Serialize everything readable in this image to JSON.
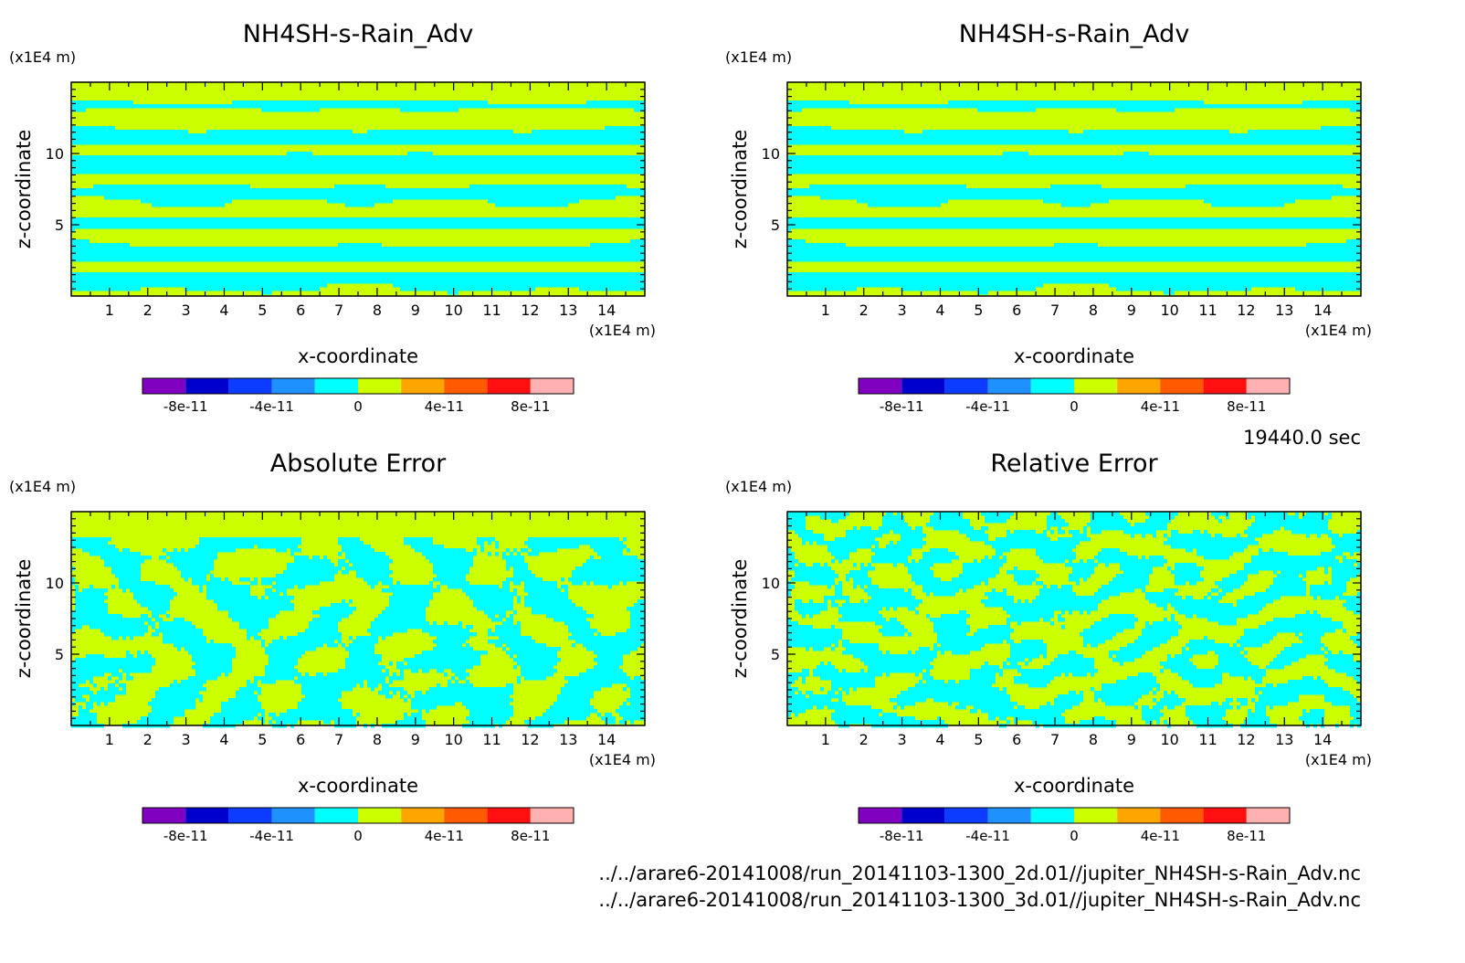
{
  "chart_data": [
    {
      "type": "heatmap",
      "title": "NH4SH-s-Rain_Adv",
      "xlabel": "x-coordinate",
      "ylabel": "z-coordinate",
      "x_unit": "(x1E4 m)",
      "y_unit": "(x1E4 m)",
      "xlim": [
        0,
        15
      ],
      "ylim": [
        0,
        15
      ],
      "x_ticks": [
        "1",
        "2",
        "3",
        "4",
        "5",
        "6",
        "7",
        "8",
        "9",
        "10",
        "11",
        "12",
        "13",
        "14"
      ],
      "y_ticks": [
        "5",
        "10"
      ],
      "field": "layered",
      "seed": 11,
      "mirror": true,
      "dominant_levels": [
        "0 to 2e-11 (yellow-green)",
        "-2e-11 to 0 (cyan)"
      ],
      "colorbar": {
        "levels": [
          -1e-10,
          -8e-11,
          -6e-11,
          -4e-11,
          -2e-11,
          0,
          2e-11,
          4e-11,
          6e-11,
          8e-11,
          1e-10
        ],
        "colors": [
          "#7f00bf",
          "#0000cd",
          "#0b3cff",
          "#1e90ff",
          "#00ffff",
          "#ccff00",
          "#ffa500",
          "#ff5a00",
          "#ff0f0f",
          "#ffb0b0"
        ],
        "labels": [
          "-8e-11",
          "-4e-11",
          "0",
          "4e-11",
          "8e-11"
        ]
      }
    },
    {
      "type": "heatmap",
      "title": "NH4SH-s-Rain_Adv",
      "xlabel": "x-coordinate",
      "ylabel": "z-coordinate",
      "x_unit": "(x1E4 m)",
      "y_unit": "(x1E4 m)",
      "xlim": [
        0,
        15
      ],
      "ylim": [
        0,
        15
      ],
      "x_ticks": [
        "1",
        "2",
        "3",
        "4",
        "5",
        "6",
        "7",
        "8",
        "9",
        "10",
        "11",
        "12",
        "13",
        "14"
      ],
      "y_ticks": [
        "5",
        "10"
      ],
      "field": "layered",
      "seed": 11,
      "mirror": true,
      "dominant_levels": [
        "0 to 2e-11 (yellow-green)",
        "-2e-11 to 0 (cyan)"
      ],
      "colorbar": {
        "levels": [
          -1e-10,
          -8e-11,
          -6e-11,
          -4e-11,
          -2e-11,
          0,
          2e-11,
          4e-11,
          6e-11,
          8e-11,
          1e-10
        ],
        "colors": [
          "#7f00bf",
          "#0000cd",
          "#0b3cff",
          "#1e90ff",
          "#00ffff",
          "#ccff00",
          "#ffa500",
          "#ff5a00",
          "#ff0f0f",
          "#ffb0b0"
        ],
        "labels": [
          "-8e-11",
          "-4e-11",
          "0",
          "4e-11",
          "8e-11"
        ]
      }
    },
    {
      "type": "heatmap",
      "title": "Absolute Error",
      "xlabel": "x-coordinate",
      "ylabel": "z-coordinate",
      "x_unit": "(x1E4 m)",
      "y_unit": "(x1E4 m)",
      "xlim": [
        0,
        15
      ],
      "ylim": [
        0,
        15
      ],
      "x_ticks": [
        "1",
        "2",
        "3",
        "4",
        "5",
        "6",
        "7",
        "8",
        "9",
        "10",
        "11",
        "12",
        "13",
        "14"
      ],
      "y_ticks": [
        "5",
        "10"
      ],
      "field": "noisy-top-flat",
      "seed": 37,
      "mirror": false,
      "dominant_levels": [
        "0 to 2e-11 (yellow-green)",
        "-2e-11 to 0 (cyan)"
      ],
      "colorbar": {
        "levels": [
          -1e-10,
          -8e-11,
          -6e-11,
          -4e-11,
          -2e-11,
          0,
          2e-11,
          4e-11,
          6e-11,
          8e-11,
          1e-10
        ],
        "colors": [
          "#7f00bf",
          "#0000cd",
          "#0b3cff",
          "#1e90ff",
          "#00ffff",
          "#ccff00",
          "#ffa500",
          "#ff5a00",
          "#ff0f0f",
          "#ffb0b0"
        ],
        "labels": [
          "-8e-11",
          "-4e-11",
          "0",
          "4e-11",
          "8e-11"
        ]
      }
    },
    {
      "type": "heatmap",
      "title": "Relative Error",
      "xlabel": "x-coordinate",
      "ylabel": "z-coordinate",
      "x_unit": "(x1E4 m)",
      "y_unit": "(x1E4 m)",
      "xlim": [
        0,
        15
      ],
      "ylim": [
        0,
        15
      ],
      "x_ticks": [
        "1",
        "2",
        "3",
        "4",
        "5",
        "6",
        "7",
        "8",
        "9",
        "10",
        "11",
        "12",
        "13",
        "14"
      ],
      "y_ticks": [
        "5",
        "10"
      ],
      "field": "noisy",
      "seed": 73,
      "mirror": false,
      "dominant_levels": [
        "0 to 2e-11 (yellow-green)",
        "-2e-11 to 0 (cyan)"
      ],
      "colorbar": {
        "levels": [
          -1e-10,
          -8e-11,
          -6e-11,
          -4e-11,
          -2e-11,
          0,
          2e-11,
          4e-11,
          6e-11,
          8e-11,
          1e-10
        ],
        "colors": [
          "#7f00bf",
          "#0000cd",
          "#0b3cff",
          "#1e90ff",
          "#00ffff",
          "#ccff00",
          "#ffa500",
          "#ff5a00",
          "#ff0f0f",
          "#ffb0b0"
        ],
        "labels": [
          "-8e-11",
          "-4e-11",
          "0",
          "4e-11",
          "8e-11"
        ]
      }
    }
  ],
  "time_label": "19440.0 sec",
  "file_paths": [
    "../../arare6-20141008/run_20141103-1300_2d.01//jupiter_NH4SH-s-Rain_Adv.nc",
    "../../arare6-20141008/run_20141103-1300_3d.01//jupiter_NH4SH-s-Rain_Adv.nc"
  ]
}
